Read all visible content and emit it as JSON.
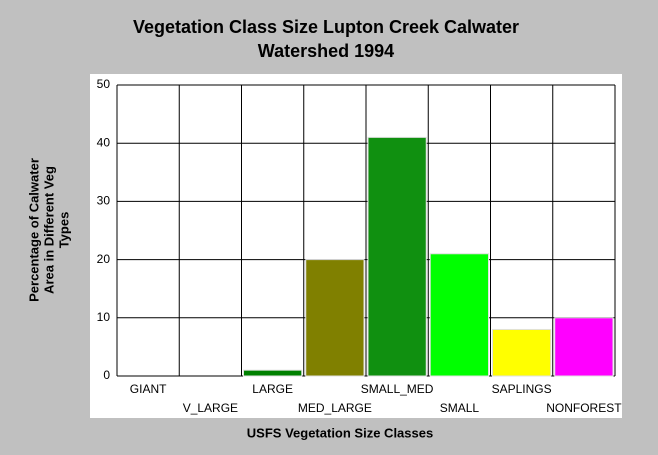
{
  "chart_data": {
    "type": "bar",
    "title": [
      "Vegetation Class Size Lupton Creek Calwater",
      "Watershed 1994"
    ],
    "x_label": "USFS Vegetation Size Classes",
    "y_label": [
      "Percentage of Calwater",
      "Area in Different Veg",
      "Types"
    ],
    "categories": [
      "GIANT",
      "V_LARGE",
      "LARGE",
      "MED_LARGE",
      "SMALL_MED",
      "SMALL",
      "SAPLINGS",
      "NONFOREST"
    ],
    "values": [
      0,
      0,
      1,
      20,
      41,
      21,
      8,
      10
    ],
    "colors": [
      "#008000",
      "#008000",
      "#008000",
      "#808000",
      "#109010",
      "#00ff00",
      "#ffff00",
      "#ff00ff"
    ],
    "ylim": [
      0,
      50
    ],
    "yticks": [
      0,
      10,
      20,
      30,
      40,
      50
    ],
    "grid": true
  }
}
